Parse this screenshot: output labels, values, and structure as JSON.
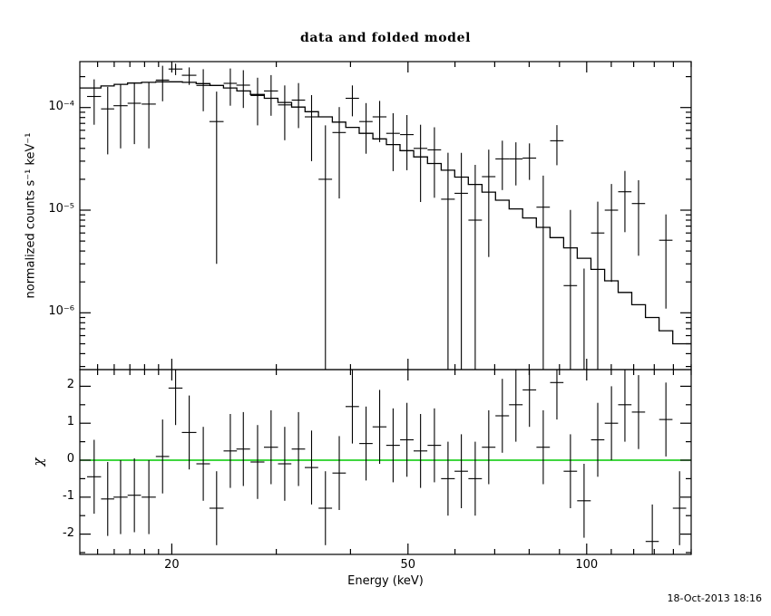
{
  "title": "data and folded model",
  "footer": {
    "timestamp": "18-Oct-2013 18:16"
  },
  "axes": {
    "x_label": "Energy (keV)",
    "x_tick_labels": [
      "20",
      "50",
      "100"
    ],
    "top_y_label": "normalized counts s⁻¹ keV⁻¹",
    "top_y_tick_labels": [
      "10⁻⁴",
      "10⁻⁵",
      "10⁻⁶"
    ],
    "bottom_y_label": "χ",
    "bottom_y_tick_labels": [
      "2",
      "1",
      "0",
      "-1",
      "-2"
    ]
  },
  "colors": {
    "background": "#ffffff",
    "data": "#000000",
    "model_line": "#000000",
    "zero_line": "#00c800"
  },
  "chart_data": [
    {
      "type": "scatter",
      "panel": "spectrum",
      "title": "data and folded model",
      "xlabel": "Energy (keV)",
      "ylabel": "normalized counts s⁻¹ keV⁻¹",
      "xscale": "log",
      "yscale": "log",
      "xlim": [
        14,
        150
      ],
      "ylim": [
        2.8e-07,
        0.00028
      ],
      "x_ticks_major": [
        20,
        50,
        100
      ],
      "x_ticks_minor": [
        15,
        16,
        17,
        18,
        19,
        30,
        40,
        60,
        70,
        80,
        90,
        110,
        120,
        130,
        140,
        150
      ],
      "y_ticks_major": [
        0.0001,
        1e-05,
        1e-06
      ],
      "x": [
        14.8,
        15.6,
        16.4,
        17.3,
        18.3,
        19.3,
        20.3,
        21.4,
        22.6,
        23.8,
        25.1,
        26.4,
        27.9,
        29.4,
        31.0,
        32.7,
        34.4,
        36.3,
        38.3,
        40.3,
        42.5,
        44.8,
        47.2,
        49.8,
        52.5,
        55.4,
        58.4,
        61.5,
        64.9,
        68.4,
        72.1,
        76.0,
        80.1,
        84.5,
        89.1,
        93.9,
        99.0,
        104.4,
        110.1,
        116.0,
        122.3,
        129.0,
        136.0,
        143.4
      ],
      "x_halfwidth": [
        0.4,
        0.4,
        0.45,
        0.45,
        0.5,
        0.5,
        0.55,
        0.6,
        0.6,
        0.65,
        0.65,
        0.7,
        0.75,
        0.8,
        0.8,
        0.85,
        0.9,
        0.95,
        1.0,
        1.05,
        1.1,
        1.2,
        1.25,
        1.3,
        1.4,
        1.45,
        1.55,
        1.6,
        1.7,
        1.8,
        1.9,
        2.0,
        2.1,
        2.2,
        2.3,
        2.45,
        2.6,
        2.7,
        2.85,
        3.0,
        3.15,
        3.3,
        3.5,
        3.7
      ],
      "y": [
        0.000128,
        9.7e-05,
        0.000104,
        0.00011,
        0.000108,
        0.000185,
        0.000237,
        0.000206,
        0.000164,
        7.3e-05,
        0.000172,
        0.000165,
        0.000131,
        0.000145,
        0.000106,
        0.000118,
        8.1e-05,
        2e-05,
        5.7e-05,
        0.000123,
        7.3e-05,
        8.1e-05,
        5.6e-05,
        5.45e-05,
        4e-05,
        3.87e-05,
        1.28e-05,
        1.46e-05,
        8e-06,
        2.12e-05,
        3.16e-05,
        3.16e-05,
        3.22e-05,
        1.07e-05,
        4.74e-05,
        1.84e-06,
        -4.4e-06,
        6e-06,
        1e-05,
        1.51e-05,
        1.16e-05,
        -1e-05,
        5.1e-06,
        -4e-06
      ],
      "y_err": [
        6e-05,
        6.2e-05,
        6.4e-05,
        6.6e-05,
        6.8e-05,
        7e-05,
        3e-05,
        4e-05,
        7.2e-05,
        7e-05,
        6.8e-05,
        6.6e-05,
        6.4e-05,
        6.2e-05,
        5.8e-05,
        5.5e-05,
        5.1e-05,
        4.7e-05,
        4.4e-05,
        4.1e-05,
        3.75e-05,
        3.5e-05,
        3.2e-05,
        3e-05,
        2.8e-05,
        2.55e-05,
        2.35e-05,
        2.15e-05,
        1.96e-05,
        1.77e-05,
        1.59e-05,
        1.42e-05,
        1.25e-05,
        1.1e-05,
        2e-05,
        8.2e-06,
        7.1e-06,
        6.1e-06,
        8e-06,
        9e-06,
        8e-06,
        5e-06,
        4e-06,
        3.5e-06
      ],
      "model": [
        0.000155,
        0.000162,
        0.000168,
        0.000173,
        0.000176,
        0.000178,
        0.000178,
        0.000176,
        0.000171,
        0.000164,
        0.000155,
        0.000145,
        0.000134,
        0.000123,
        0.000112,
        0.000101,
        9.1e-05,
        8.1e-05,
        7.2e-05,
        6.4e-05,
        5.6e-05,
        4.95e-05,
        4.35e-05,
        3.8e-05,
        3.3e-05,
        2.85e-05,
        2.45e-05,
        2.1e-05,
        1.78e-05,
        1.5e-05,
        1.25e-05,
        1.03e-05,
        8.4e-06,
        6.8e-06,
        5.4e-06,
        4.3e-06,
        3.4e-06,
        2.65e-06,
        2.05e-06,
        1.58e-06,
        1.2e-06,
        9e-07,
        6.7e-07,
        5e-07
      ]
    },
    {
      "type": "scatter",
      "panel": "residuals",
      "ylabel": "χ",
      "xscale": "log",
      "yscale": "linear",
      "xlim": [
        14,
        150
      ],
      "ylim": [
        -2.55,
        2.45
      ],
      "y_ticks_major": [
        2,
        1,
        0,
        -1,
        -2
      ],
      "chi": [
        -0.45,
        -1.05,
        -1.0,
        -0.95,
        -1.0,
        0.1,
        1.95,
        0.75,
        -0.1,
        -1.3,
        0.25,
        0.3,
        -0.05,
        0.35,
        -0.1,
        0.3,
        -0.2,
        -1.3,
        -0.35,
        1.45,
        0.45,
        0.9,
        0.4,
        0.55,
        0.25,
        0.4,
        -0.5,
        -0.3,
        -0.5,
        0.35,
        1.2,
        1.5,
        1.9,
        0.35,
        2.1,
        -0.3,
        -1.1,
        0.55,
        1.0,
        1.5,
        1.3,
        -2.2,
        1.1,
        -1.3
      ],
      "chi_err": 1.0,
      "zero_line": 0
    }
  ]
}
